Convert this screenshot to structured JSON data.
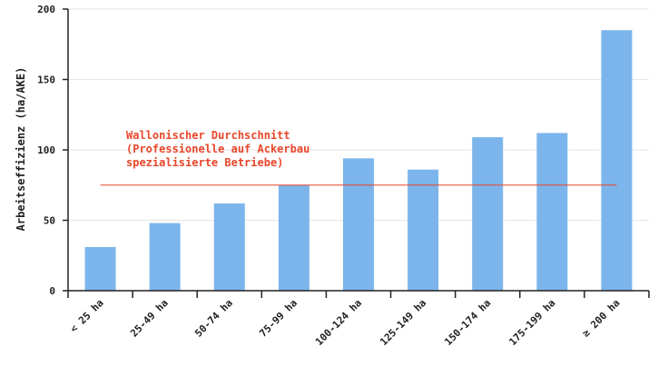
{
  "chart_data": {
    "type": "bar",
    "title": "",
    "xlabel": "",
    "ylabel": "Arbeitseffizienz (ha/AKE)",
    "ylim": [
      0,
      200
    ],
    "yticks": [
      0,
      50,
      100,
      150,
      200
    ],
    "grid": true,
    "categories": [
      "< 25 ha",
      "25-49 ha",
      "50-74 ha",
      "75-99 ha",
      "100-124 ha",
      "125-149 ha",
      "150-174 ha",
      "175-199 ha",
      "≥ 200 ha"
    ],
    "values": [
      31,
      48,
      62,
      75,
      94,
      86,
      109,
      112,
      185
    ],
    "bar_color": "#7cb5ec",
    "reference_line": {
      "value": 75,
      "color": "#e8462a",
      "label_lines": [
        "Wallonischer Durchschnitt",
        "(Professionelle auf Ackerbau",
        "spezialisierte Betriebe)"
      ]
    }
  }
}
